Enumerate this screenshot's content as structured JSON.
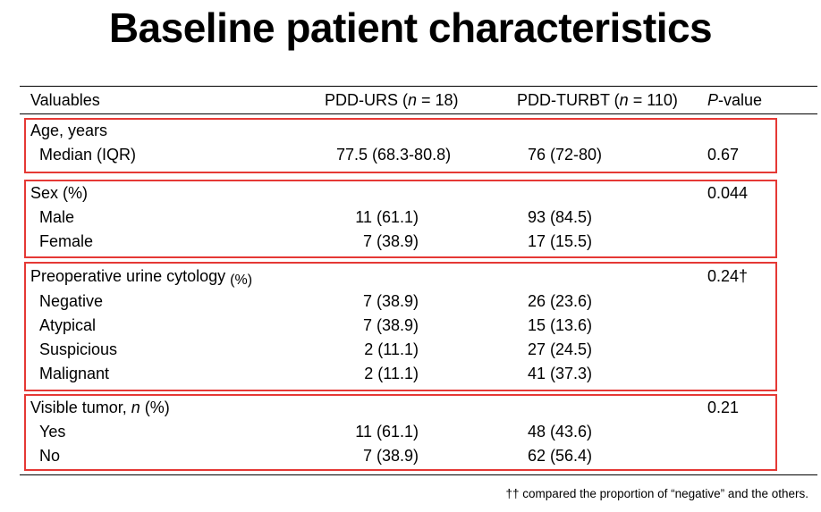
{
  "title": "Baseline patient characteristics",
  "header": {
    "col1": "Valuables",
    "col2_prefix": "PDD-URS (",
    "col2_n": "n",
    "col2_suffix": " = 18)",
    "col3_prefix": "PDD-TURBT (",
    "col3_n": "n",
    "col3_suffix": " = 110)",
    "col4_p": "P",
    "col4_suffix": "-value"
  },
  "age": {
    "label": "Age, years",
    "row_label": "Median (IQR)",
    "urs": "77.5 (68.3-80.8)",
    "turbt": "76 (72-80)",
    "p": "0.67"
  },
  "sex": {
    "label": "Sex (%)",
    "p": "0.044",
    "rows": [
      {
        "label": "Male",
        "urs": "11 (61.1)",
        "turbt": "93 (84.5)"
      },
      {
        "label": "Female",
        "urs": "7 (38.9)",
        "turbt": "17 (15.5)"
      }
    ]
  },
  "cytology": {
    "label": "Preoperative urine cytology",
    "label_pct": "(%)",
    "p": "0.24†",
    "rows": [
      {
        "label": "Negative",
        "urs": "7 (38.9)",
        "turbt": "26 (23.6)"
      },
      {
        "label": "Atypical",
        "urs": "7 (38.9)",
        "turbt": "15 (13.6)"
      },
      {
        "label": "Suspicious",
        "urs": "2 (11.1)",
        "turbt": "27 (24.5)"
      },
      {
        "label": "Malignant",
        "urs": "2 (11.1)",
        "turbt": "41 (37.3)"
      }
    ]
  },
  "tumor": {
    "label_prefix": "Visible tumor, ",
    "label_n": "n",
    "label_suffix": " (%)",
    "p": "0.21",
    "rows": [
      {
        "label": "Yes",
        "urs": "11 (61.1)",
        "turbt": "48 (43.6)"
      },
      {
        "label": "No",
        "urs": "7 (38.9)",
        "turbt": "62 (56.4)"
      }
    ]
  },
  "footnote": "†† compared the proportion of “negative” and the others.",
  "highlight_color": "#e53935"
}
